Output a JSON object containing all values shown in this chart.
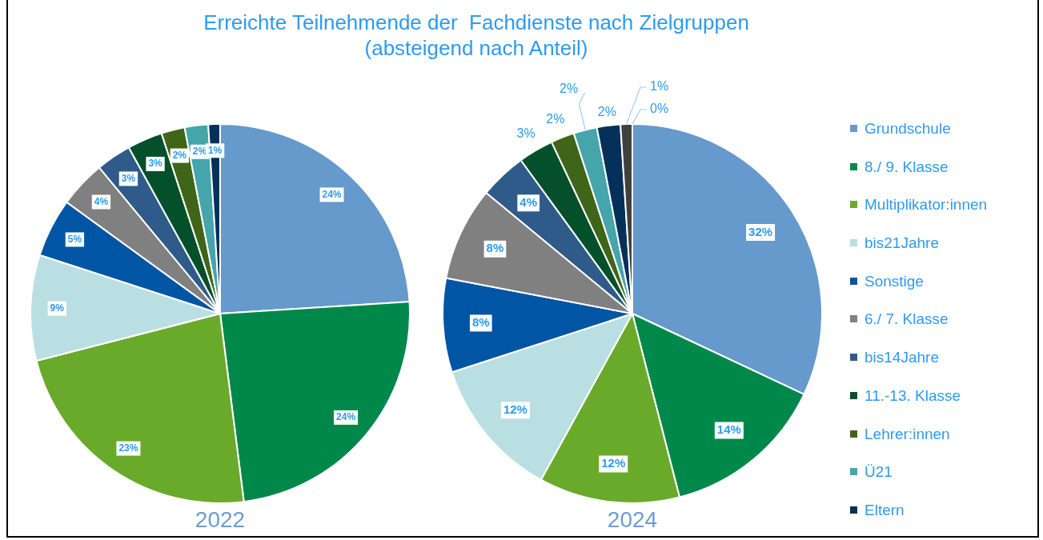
{
  "chart_data": [
    {
      "type": "pie",
      "xlabel": "2022",
      "categories": [
        null,
        null,
        null,
        null,
        null,
        null,
        null,
        null,
        null,
        null,
        null
      ],
      "values": [
        24,
        24,
        23,
        9,
        5,
        4,
        3,
        3,
        2,
        2,
        1
      ],
      "value_labels": [
        "24%",
        "24%",
        "23%",
        "9%",
        "5%",
        "4%",
        "3%",
        "3%",
        "2%",
        "2%",
        "1%"
      ],
      "colors": [
        "#6699cc",
        "#00884b",
        "#6aaa2a",
        "#b9dfe2",
        "#0055a4",
        "#808080",
        "#2e5b8a",
        "#03502b",
        "#3f6518",
        "#45a5ab",
        "#05305a"
      ],
      "legend": false
    },
    {
      "type": "pie",
      "title": "Erreichte Teilnehmende der  Fachdienste nach Zielgruppen",
      "subtitle": "(absteigend nach Anteil)",
      "xlabel": "2024",
      "categories": [
        "Grundschule",
        "8./ 9. Klasse",
        "Multiplikator:innen",
        "bis21Jahre",
        "Sonstige",
        "6./ 7. Klasse",
        "bis14Jahre",
        "11.-13. Klasse",
        "Lehrer:innen",
        "Ü21",
        "Eltern",
        null,
        null
      ],
      "values": [
        32,
        14,
        12,
        12,
        8,
        8,
        4,
        3,
        2,
        2,
        2,
        1,
        0
      ],
      "value_labels": [
        "32%",
        "14%",
        "12%",
        "12%",
        "8%",
        "8%",
        "4%",
        "3%",
        "2%",
        "2%",
        "2%",
        "1%",
        "0%"
      ],
      "colors": [
        "#6699cc",
        "#00884b",
        "#6aaa2a",
        "#b9dfe2",
        "#0055a4",
        "#808080",
        "#2e5b8a",
        "#03502b",
        "#3f6518",
        "#45a5ab",
        "#05305a",
        "#404040",
        "#a8c4e0"
      ],
      "legend": "right"
    }
  ]
}
